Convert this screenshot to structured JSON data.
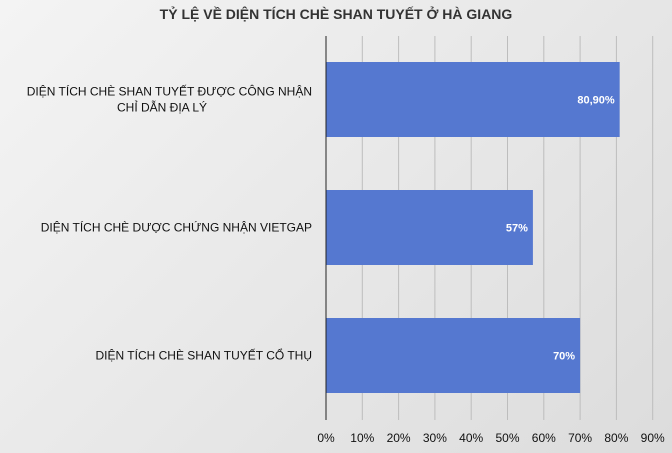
{
  "chart_data": {
    "type": "bar",
    "orientation": "horizontal",
    "title": "TỶ LỆ VỀ DIỆN TÍCH CHÈ SHAN TUYẾT Ở HÀ GIANG",
    "categories": [
      [
        "DIỆN TÍCH CHÈ SHAN TUYẾT ĐƯỢC CÔNG NHẬN",
        "CHỈ DẪN ĐỊA LÝ"
      ],
      [
        "DIỆN TÍCH CHÈ DƯỢC CHỨNG NHẬN VIETGAP"
      ],
      [
        "DIỆN TÍCH CHÈ SHAN TUYẾT CỔ THỤ"
      ]
    ],
    "values": [
      80.9,
      57,
      70
    ],
    "data_labels": [
      "80,90%",
      "57%",
      "70%"
    ],
    "xlim": [
      0,
      90
    ],
    "xticks": [
      "0%",
      "10%",
      "20%",
      "30%",
      "40%",
      "50%",
      "60%",
      "70%",
      "80%",
      "90%"
    ],
    "grid": true,
    "bar_color": "#5578d0"
  }
}
